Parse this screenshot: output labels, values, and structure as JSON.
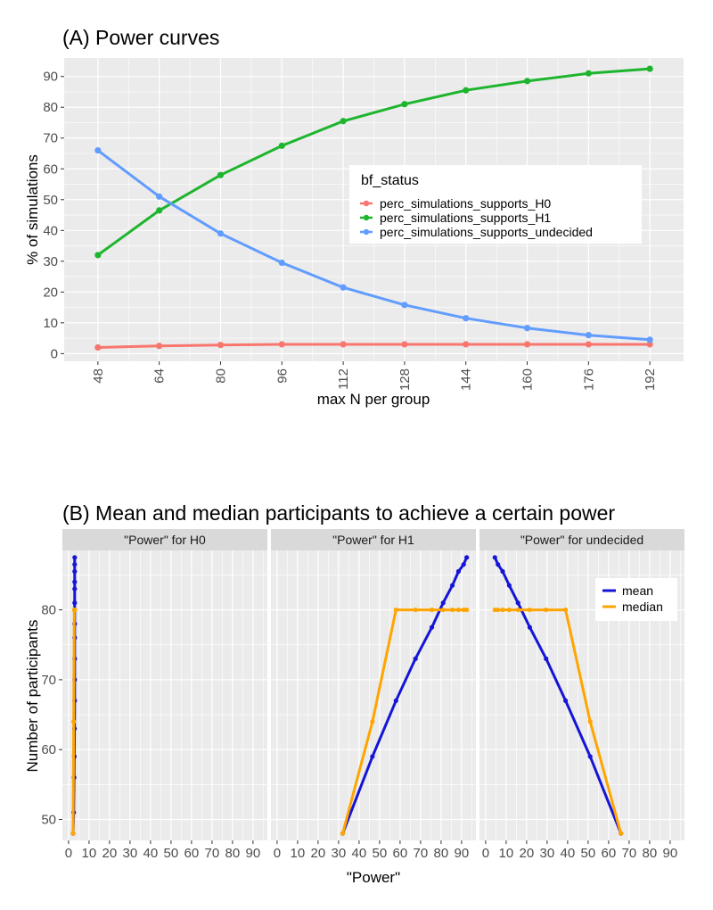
{
  "chart_data": [
    {
      "type": "line",
      "title": "(A) Power curves",
      "xlabel": "max N per group",
      "ylabel": "% of simulations",
      "x": [
        48,
        64,
        80,
        96,
        112,
        128,
        144,
        160,
        176,
        192
      ],
      "x_ticks": [
        "48",
        "64",
        "80",
        "96",
        "112",
        "128",
        "144",
        "160",
        "176",
        "192"
      ],
      "y_ticks": [
        0,
        10,
        20,
        30,
        40,
        50,
        60,
        70,
        80,
        90
      ],
      "ylim": [
        -2.5,
        96
      ],
      "grid": true,
      "legend": {
        "title": "bf_status",
        "position": "center-right"
      },
      "series": [
        {
          "name": "perc_simulations_supports_H0",
          "color": "#F8766D",
          "values": [
            2,
            2.5,
            2.8,
            3,
            3,
            3,
            3,
            3,
            3,
            3
          ]
        },
        {
          "name": "perc_simulations_supports_H1",
          "color": "#1EB52E",
          "values": [
            32,
            46.5,
            58,
            67.5,
            75.5,
            81,
            85.5,
            88.5,
            91,
            92.5
          ]
        },
        {
          "name": "perc_simulations_supports_undecided",
          "color": "#619CFF",
          "values": [
            66,
            51,
            39,
            29.5,
            21.5,
            15.8,
            11.5,
            8.3,
            6,
            4.5
          ]
        }
      ]
    },
    {
      "type": "line",
      "title": "(B) Mean and median participants to achieve a certain power",
      "xlabel": "\"Power\"",
      "ylabel": "Number of participants",
      "x_ticks": [
        0,
        10,
        20,
        30,
        40,
        50,
        60,
        70,
        80,
        90
      ],
      "y_ticks": [
        50,
        60,
        70,
        80
      ],
      "xlim": [
        -3,
        97
      ],
      "ylim": [
        47,
        88.5
      ],
      "grid": true,
      "legend": {
        "position": "top-right",
        "entries": [
          {
            "name": "mean",
            "color": "#1515D6"
          },
          {
            "name": "median",
            "color": "#FFA500"
          }
        ]
      },
      "facets": [
        {
          "label": "\"Power\" for H0",
          "mean": {
            "x": [
              2.2,
              2.5,
              2.7,
              2.8,
              2.9,
              3,
              3,
              3,
              3,
              3,
              3,
              3,
              3,
              3,
              3,
              3
            ],
            "y": [
              48,
              51,
              56,
              59,
              63,
              67,
              70,
              73,
              76,
              78,
              81,
              83,
              84,
              85.5,
              86.5,
              87.5
            ]
          },
          "median": {
            "x": [
              2.2,
              2.5,
              2.8,
              3,
              3,
              3,
              3,
              3,
              3,
              3,
              3
            ],
            "y": [
              48,
              64,
              80,
              80,
              80,
              80,
              80,
              80,
              80,
              80,
              80
            ]
          }
        },
        {
          "label": "\"Power\" for H1",
          "mean": {
            "x": [
              32,
              46.5,
              58,
              67.5,
              75.5,
              81,
              85.5,
              88.5,
              91,
              92.5
            ],
            "y": [
              48,
              59,
              67,
              73,
              77.5,
              81,
              83.5,
              85.5,
              86.5,
              87.5
            ]
          },
          "median": {
            "x": [
              32,
              46.5,
              58,
              67.5,
              75.5,
              81,
              85.5,
              88.5,
              91,
              92.5
            ],
            "y": [
              48,
              64,
              80,
              80,
              80,
              80,
              80,
              80,
              80,
              80
            ]
          }
        },
        {
          "label": "\"Power\" for undecided",
          "mean": {
            "x": [
              66,
              51,
              39,
              29.5,
              21.5,
              15.8,
              11.5,
              8.3,
              6,
              4.5
            ],
            "y": [
              48,
              59,
              67,
              73,
              77.5,
              81,
              83.5,
              85.5,
              86.5,
              87.5
            ]
          },
          "median": {
            "x": [
              66,
              51,
              39,
              29.5,
              21.5,
              15.8,
              11.5,
              8.3,
              6,
              4.5
            ],
            "y": [
              48,
              64,
              80,
              80,
              80,
              80,
              80,
              80,
              80,
              80
            ]
          }
        }
      ]
    }
  ]
}
